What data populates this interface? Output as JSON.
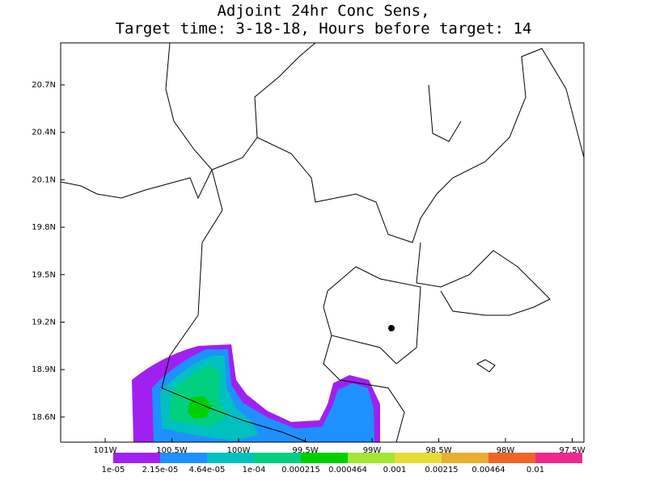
{
  "title": [
    "Adjoint 24hr Conc Sens,",
    "Target time: 3-18-18, Hours before target: 14"
  ],
  "lat_labels": [
    "20.7N",
    "20.4N",
    "20.1N",
    "19.8N",
    "19.5N",
    "19.2N",
    "18.9N",
    "18.6N"
  ],
  "lon_labels": [
    "101W",
    "100.5W",
    "100W",
    "99.5W",
    "99W",
    "98.5W",
    "98W",
    "97.5W"
  ],
  "colorbar": {
    "labels": [
      "1e-05",
      "2.15e-05",
      "4.64e-05",
      "1e-04",
      "0.000215",
      "0.000464",
      "0.001",
      "0.00215",
      "0.00464",
      "0.01"
    ],
    "colors": [
      "#a020f0",
      "#1e90ff",
      "#00c0c0",
      "#00d080",
      "#00d000",
      "#a0e632",
      "#e6dc32",
      "#e6af2d",
      "#f06428",
      "#f0288c"
    ]
  }
}
